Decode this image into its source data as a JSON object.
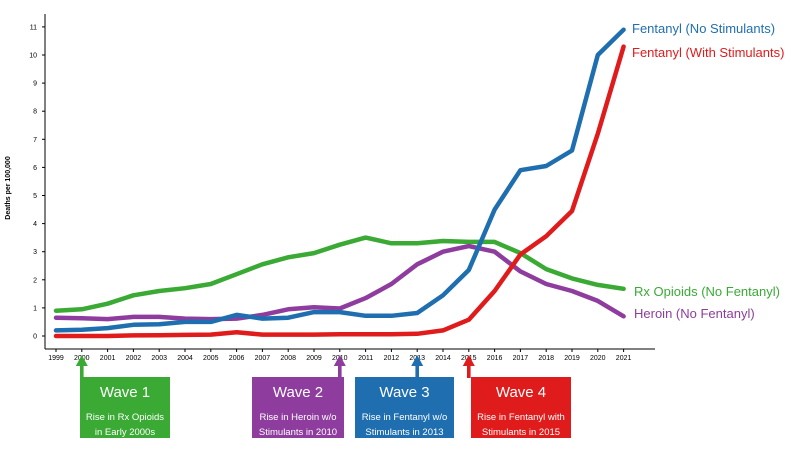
{
  "chart_data": {
    "type": "line",
    "ylabel": "Deaths per 100,000",
    "ylim": [
      0,
      11
    ],
    "yticks": [
      "0",
      "1",
      "2",
      "3",
      "4",
      "5",
      "6",
      "7",
      "8",
      "9",
      "10",
      "11"
    ],
    "x": [
      "1999",
      "2000",
      "2001",
      "2002",
      "2003",
      "2004",
      "2005",
      "2006",
      "2007",
      "2008",
      "2009",
      "2010",
      "2011",
      "2012",
      "2013",
      "2014",
      "2015",
      "2016",
      "2017",
      "2018",
      "2019",
      "2020",
      "2021"
    ],
    "grid": false,
    "series": [
      {
        "name": "Fentanyl (No Stimulants)",
        "color": "#1f6fb0",
        "values": [
          0.2,
          0.22,
          0.28,
          0.4,
          0.42,
          0.5,
          0.5,
          0.75,
          0.62,
          0.65,
          0.85,
          0.85,
          0.72,
          0.72,
          0.82,
          1.45,
          2.35,
          4.5,
          5.9,
          6.05,
          6.6,
          10.0,
          10.9
        ]
      },
      {
        "name": "Fentanyl (With Stimulants)",
        "color": "#e01b1b",
        "values": [
          0.0,
          0.0,
          0.0,
          0.02,
          0.03,
          0.04,
          0.05,
          0.13,
          0.05,
          0.05,
          0.05,
          0.06,
          0.06,
          0.06,
          0.08,
          0.2,
          0.58,
          1.6,
          2.9,
          3.55,
          4.45,
          7.2,
          10.3
        ]
      },
      {
        "name": "Rx Opioids (No Fentanyl)",
        "color": "#3aaa35",
        "values": [
          0.9,
          0.95,
          1.15,
          1.45,
          1.6,
          1.7,
          1.85,
          2.2,
          2.55,
          2.8,
          2.95,
          3.25,
          3.5,
          3.3,
          3.3,
          3.38,
          3.35,
          3.35,
          2.95,
          2.38,
          2.05,
          1.82,
          1.68
        ]
      },
      {
        "name": "Heroin (No Fentanyl)",
        "color": "#8e3d9e",
        "values": [
          0.65,
          0.63,
          0.6,
          0.68,
          0.68,
          0.62,
          0.6,
          0.62,
          0.75,
          0.95,
          1.02,
          0.98,
          1.35,
          1.85,
          2.55,
          3.0,
          3.2,
          3.0,
          2.3,
          1.85,
          1.6,
          1.25,
          0.7
        ]
      }
    ]
  },
  "waves": [
    {
      "title": "Wave 1",
      "line1": "Rise in Rx Opioids",
      "line2": "in Early 2000s",
      "color": "#3aaa35",
      "year": "2000"
    },
    {
      "title": "Wave 2",
      "line1": "Rise in Heroin w/o",
      "line2": "Stimulants in 2010",
      "color": "#8e3d9e",
      "year": "2010"
    },
    {
      "title": "Wave 3",
      "line1": "Rise in Fentanyl w/o",
      "line2": "Stimulants in 2013",
      "color": "#1f6fb0",
      "year": "2013"
    },
    {
      "title": "Wave 4",
      "line1": "Rise in Fentanyl with",
      "line2": "Stimulants in 2015",
      "color": "#e01b1b",
      "year": "2015"
    }
  ]
}
